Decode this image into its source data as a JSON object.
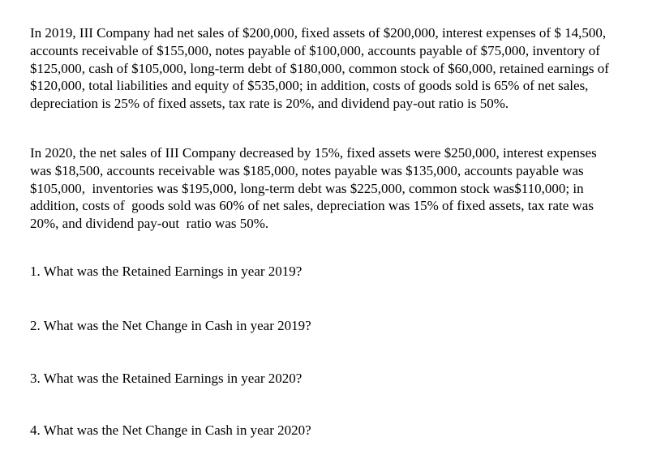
{
  "document": {
    "background_color": "#ffffff",
    "text_color": "#000000",
    "paragraphs": [
      {
        "name": "scenario-2019",
        "text": "In 2019, III Company had net sales of $200,000, fixed assets of $200,000, interest expenses of $ 14,500, accounts receivable of $155,000, notes payable of $100,000, accounts payable of $75,000, inventory of $125,000, cash of $105,000, long-term debt of $180,000, common stock of $60,000, retained earnings of $120,000, total liabilities and equity of $535,000; in addition, costs of goods sold is 65% of net sales, depreciation is 25% of fixed assets, tax rate is 20%, and dividend pay-out ratio is 50%."
      },
      {
        "name": "scenario-2020",
        "text": "In 2020, the net sales of III Company decreased by 15%, fixed assets were $250,000, interest expenses was $18,500, accounts receivable was $185,000, notes payable was $135,000, accounts payable was $105,000,  inventories was $195,000, long-term debt was $225,000, common stock was$110,000; in addition, costs of  goods sold was 60% of net sales, depreciation was 15% of fixed assets, tax rate was 20%, and dividend pay-out  ratio was 50%."
      }
    ],
    "questions": [
      {
        "number": "1",
        "text": "1. What was the Retained Earnings in year 2019?"
      },
      {
        "number": "2",
        "text": "2. What was the Net Change in Cash in year 2019?"
      },
      {
        "number": "3",
        "text": "3. What was the Retained Earnings in year 2020?"
      },
      {
        "number": "4",
        "text": "4. What was the Net Change in Cash in year 2020?"
      }
    ]
  }
}
